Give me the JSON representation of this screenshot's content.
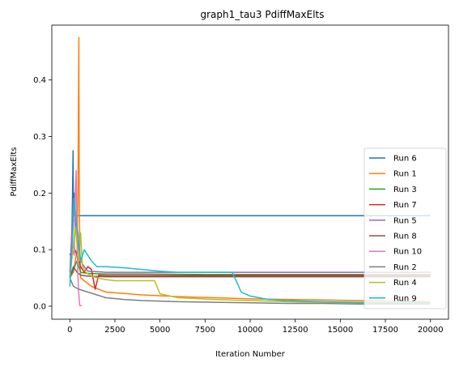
{
  "chart_data": {
    "type": "line",
    "title": "graph1_tau3 PdiffMaxElts",
    "xlabel": "Iteration Number",
    "ylabel": "PdiffMaxElts",
    "xlim": [
      -1000,
      21000
    ],
    "ylim": [
      -0.023,
      0.497
    ],
    "xticks": [
      0,
      2500,
      5000,
      7500,
      10000,
      12500,
      15000,
      17500,
      20000
    ],
    "xtick_labels": [
      "0",
      "2500",
      "5000",
      "7500",
      "10000",
      "12500",
      "15000",
      "17500",
      "20000"
    ],
    "yticks": [
      0.0,
      0.1,
      0.2,
      0.3,
      0.4
    ],
    "ytick_labels": [
      "0.0",
      "0.1",
      "0.2",
      "0.3",
      "0.4"
    ],
    "grid": false,
    "legend_position": "right",
    "series": [
      {
        "name": "Run 6",
        "color": "#1f77b4",
        "x": [
          0,
          100,
          150,
          180,
          200,
          230,
          260,
          300,
          400,
          500,
          20000
        ],
        "y": [
          0.05,
          0.104,
          0.2,
          0.275,
          0.15,
          0.2,
          0.16,
          0.16,
          0.16,
          0.16,
          0.16
        ]
      },
      {
        "name": "Run 1",
        "color": "#ff7f0e",
        "x": [
          0,
          200,
          300,
          400,
          450,
          500,
          520,
          560,
          600,
          800,
          1200,
          2000,
          4000,
          6000,
          8000,
          10000,
          12000,
          14000,
          16000,
          18000,
          20000
        ],
        "y": [
          0.05,
          0.06,
          0.08,
          0.1,
          0.2,
          0.475,
          0.2,
          0.09,
          0.05,
          0.045,
          0.035,
          0.025,
          0.02,
          0.017,
          0.015,
          0.013,
          0.012,
          0.011,
          0.01,
          0.009,
          0.008
        ]
      },
      {
        "name": "Run 3",
        "color": "#2ca02c",
        "x": [
          0,
          200,
          400,
          600,
          1000,
          2000,
          4000,
          8000,
          12000,
          16000,
          20000
        ],
        "y": [
          0.05,
          0.065,
          0.08,
          0.06,
          0.058,
          0.057,
          0.057,
          0.056,
          0.056,
          0.056,
          0.056
        ]
      },
      {
        "name": "Run 7",
        "color": "#d62728",
        "x": [
          0,
          200,
          400,
          600,
          800,
          1000,
          1200,
          1400,
          1600,
          2000,
          4000,
          8000,
          12000,
          16000,
          20000
        ],
        "y": [
          0.09,
          0.106,
          0.09,
          0.07,
          0.06,
          0.07,
          0.065,
          0.03,
          0.055,
          0.054,
          0.054,
          0.054,
          0.054,
          0.054,
          0.054
        ]
      },
      {
        "name": "Run 5",
        "color": "#9467bd",
        "x": [
          0,
          200,
          400,
          600,
          800,
          1000,
          2000,
          4000,
          8000,
          12000,
          16000,
          20000
        ],
        "y": [
          0.06,
          0.19,
          0.12,
          0.08,
          0.07,
          0.062,
          0.06,
          0.06,
          0.06,
          0.06,
          0.06,
          0.06
        ]
      },
      {
        "name": "Run 8",
        "color": "#8c564b",
        "x": [
          0,
          200,
          400,
          600,
          1000,
          2000,
          4000,
          8000,
          12000,
          16000,
          20000
        ],
        "y": [
          0.05,
          0.07,
          0.06,
          0.055,
          0.053,
          0.052,
          0.052,
          0.052,
          0.052,
          0.052,
          0.052
        ]
      },
      {
        "name": "Run 10",
        "color": "#e377c2",
        "x": [
          0,
          150,
          250,
          300,
          350,
          400,
          450,
          500,
          550,
          600,
          650
        ],
        "y": [
          0.06,
          0.1,
          0.09,
          0.2,
          0.24,
          0.1,
          0.05,
          0.02,
          0.001,
          0.001,
          0.001
        ]
      },
      {
        "name": "Run 2",
        "color": "#7f7f7f",
        "x": [
          0,
          200,
          500,
          1000,
          1500,
          2000,
          3000,
          4000,
          6000,
          8000,
          10000,
          12000,
          14000,
          16000,
          18000,
          20000
        ],
        "y": [
          0.05,
          0.035,
          0.03,
          0.025,
          0.02,
          0.015,
          0.012,
          0.01,
          0.008,
          0.007,
          0.006,
          0.005,
          0.005,
          0.004,
          0.004,
          0.004
        ]
      },
      {
        "name": "Run 4",
        "color": "#bcbd22",
        "x": [
          0,
          300,
          500,
          600,
          700,
          900,
          1100,
          1500,
          2000,
          2500,
          3500,
          4700,
          5000,
          6000,
          8000,
          10000,
          12000,
          14000,
          16000,
          18000,
          20000
        ],
        "y": [
          0.05,
          0.14,
          0.08,
          0.13,
          0.07,
          0.06,
          0.055,
          0.05,
          0.047,
          0.045,
          0.045,
          0.045,
          0.022,
          0.015,
          0.012,
          0.01,
          0.008,
          0.007,
          0.006,
          0.006,
          0.005
        ]
      },
      {
        "name": "Run 9",
        "color": "#17becf",
        "x": [
          0,
          150,
          250,
          350,
          450,
          600,
          800,
          1000,
          1200,
          1500,
          2000,
          3000,
          4000,
          5000,
          6000,
          7000,
          8000,
          9000,
          9300,
          9500,
          10000,
          10500,
          11000,
          12000,
          14000,
          16000,
          18000,
          20000
        ],
        "y": [
          0.035,
          0.12,
          0.19,
          0.15,
          0.13,
          0.08,
          0.1,
          0.09,
          0.08,
          0.07,
          0.07,
          0.068,
          0.065,
          0.062,
          0.06,
          0.06,
          0.06,
          0.06,
          0.04,
          0.025,
          0.018,
          0.015,
          0.012,
          0.01,
          0.008,
          0.007,
          0.006,
          0.006
        ]
      }
    ]
  }
}
